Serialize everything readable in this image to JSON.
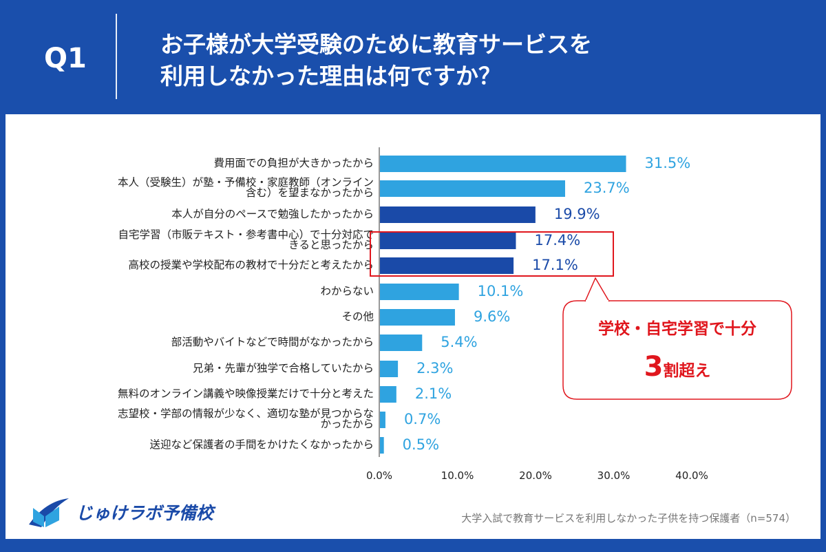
{
  "header": {
    "q": "Q1",
    "title_line1": "お子様が大学受験のために教育サービスを",
    "title_line2": "利用しなかった理由は何ですか？"
  },
  "chart_data": {
    "type": "bar",
    "orientation": "horizontal",
    "categories": [
      "費用面での負担が大きかったから",
      "本人（受験生）が塾・予備校・家庭教師（オンライン含む）を望まなかったから",
      "本人が自分のペースで勉強したかったから",
      "自宅学習（市販テキスト・参考書中心）で十分対応できると思ったから",
      "高校の授業や学校配布の教材で十分だと考えたから",
      "わからない",
      "その他",
      "部活動やバイトなどで時間がなかったから",
      "兄弟・先輩が独学で合格していたから",
      "無料のオンライン講義や映像授業だけで十分と考えた",
      "志望校・学部の情報が少なく、適切な塾が見つからなかったから",
      "送迎など保護者の手間をかけたくなかったから"
    ],
    "label_lines": [
      [
        "費用面での負担が大きかったから"
      ],
      [
        "本人（受験生）が塾・予備校・家庭教師（オンライン",
        "含む）を望まなかったから"
      ],
      [
        "本人が自分のペースで勉強したかったから"
      ],
      [
        "自宅学習（市販テキスト・参考書中心）で十分対応で",
        "きると思ったから"
      ],
      [
        "高校の授業や学校配布の教材で十分だと考えたから"
      ],
      [
        "わからない"
      ],
      [
        "その他"
      ],
      [
        "部活動やバイトなどで時間がなかったから"
      ],
      [
        "兄弟・先輩が独学で合格していたから"
      ],
      [
        "無料のオンライン講義や映像授業だけで十分と考えた"
      ],
      [
        "志望校・学部の情報が少なく、適切な塾が見つからな",
        "かったから"
      ],
      [
        "送迎など保護者の手間をかけたくなかったから"
      ]
    ],
    "values": [
      31.5,
      23.7,
      19.9,
      17.4,
      17.1,
      10.1,
      9.6,
      5.4,
      2.3,
      2.1,
      0.7,
      0.5
    ],
    "value_labels": [
      "31.5%",
      "23.7%",
      "19.9%",
      "17.4%",
      "17.1%",
      "10.1%",
      "9.6%",
      "5.4%",
      "2.3%",
      "2.1%",
      "0.7%",
      "0.5%"
    ],
    "highlighted": [
      false,
      false,
      true,
      true,
      true,
      false,
      false,
      false,
      false,
      false,
      false,
      false
    ],
    "xlim": [
      0,
      40
    ],
    "x_ticks": [
      "0.0%",
      "10.0%",
      "20.0%",
      "30.0%",
      "40.0%"
    ],
    "colors": {
      "normal": "#2fa3e0",
      "highlight": "#1a4aa8"
    }
  },
  "callout": {
    "line1": "学校・自宅学習で十分",
    "big": "3",
    "rest": "割超え",
    "color": "#e0161d"
  },
  "logo": {
    "text": "じゅけラボ予備校"
  },
  "footnote": "大学入試で教育サービスを利用しなかった子供を持つ保護者（n=574）"
}
